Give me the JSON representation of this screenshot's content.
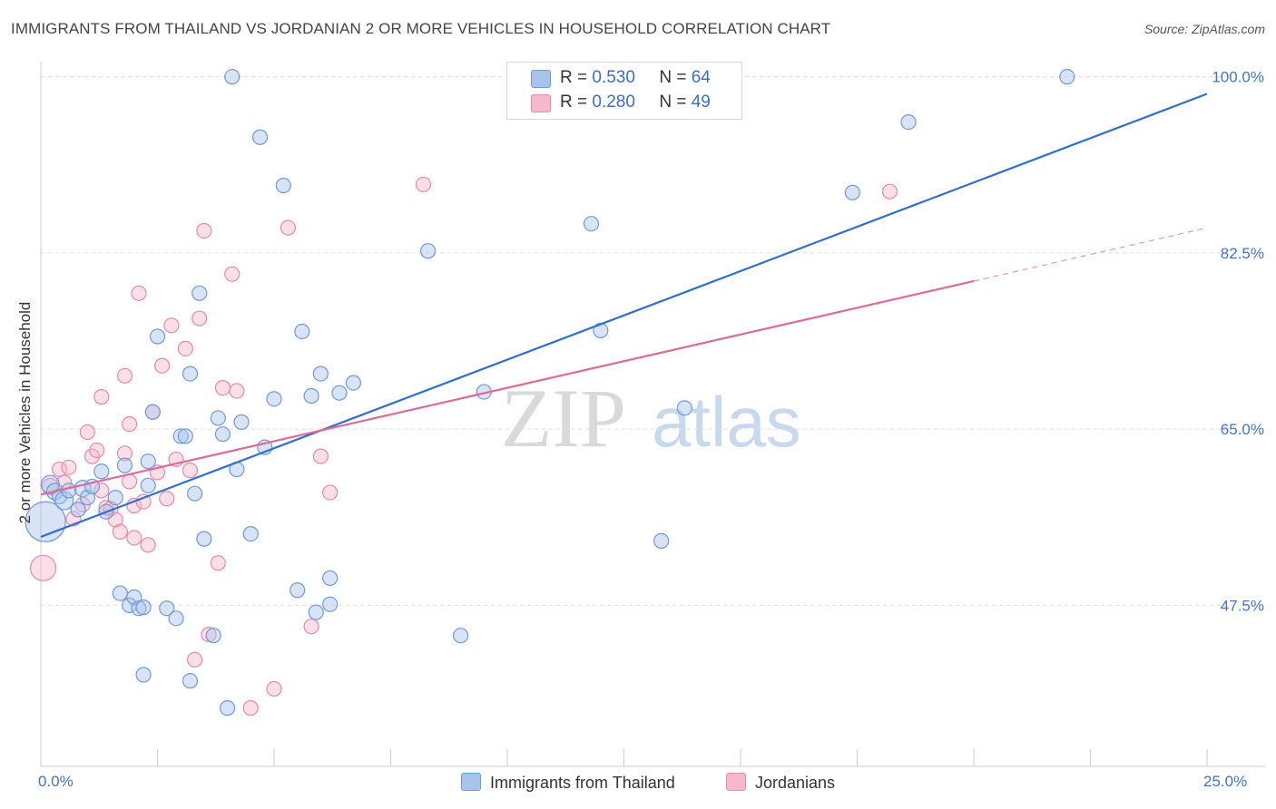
{
  "title": "IMMIGRANTS FROM THAILAND VS JORDANIAN 2 OR MORE VEHICLES IN HOUSEHOLD CORRELATION CHART",
  "source": "Source: ZipAtlas.com",
  "watermark": {
    "zip": "ZIP",
    "atlas": "atlas"
  },
  "legend": {
    "rows": [
      {
        "r_label": "R = ",
        "r_value": "0.530",
        "n_label": "N = ",
        "n_value": "64"
      },
      {
        "r_label": "R = ",
        "r_value": "0.280",
        "n_label": "N = ",
        "n_value": "49"
      }
    ]
  },
  "bottom_legend": {
    "series1": "Immigrants from Thailand",
    "series2": "Jordanians"
  },
  "colors": {
    "blue_fill": "#a9c4ec",
    "blue_stroke": "#6f9ad8",
    "blue_line": "#2e6fd0",
    "pink_fill": "#f6b8cb",
    "pink_stroke": "#e88aa8",
    "pink_line": "#e06a97",
    "tick_label": "#4472c4",
    "grid": "#dddddd"
  },
  "chart_data": {
    "type": "scatter",
    "title": "IMMIGRANTS FROM THAILAND VS JORDANIAN 2 OR MORE VEHICLES IN HOUSEHOLD CORRELATION CHART",
    "xlabel": "",
    "ylabel": "2 or more Vehicles in Household",
    "xlim": [
      0,
      25
    ],
    "ylim": [
      31.5,
      101.5
    ],
    "x_tick_labels": [
      {
        "value": 0,
        "label": "0.0%"
      },
      {
        "value": 25,
        "label": "25.0%"
      }
    ],
    "y_tick_labels": [
      {
        "value": 47.5,
        "label": "47.5%"
      },
      {
        "value": 65.0,
        "label": "65.0%"
      },
      {
        "value": 82.5,
        "label": "82.5%"
      },
      {
        "value": 100.0,
        "label": "100.0%"
      }
    ],
    "x_minor_ticks": [
      2.5,
      5,
      7.5,
      10,
      12.5,
      15,
      17.5,
      20,
      22.5,
      25
    ],
    "grid": true,
    "legend_position": "top-center",
    "series": [
      {
        "name": "Immigrants from Thailand",
        "color": "blue",
        "R": 0.53,
        "N": 64,
        "trend": {
          "x0": 0,
          "y0": 54.3,
          "x1": 25,
          "y1": 98.3,
          "dashed_from": null
        },
        "points": [
          [
            0.1,
            55.8,
            22
          ],
          [
            0.2,
            59.5,
            10
          ],
          [
            0.3,
            58.8,
            9
          ],
          [
            0.4,
            58.3,
            8
          ],
          [
            0.5,
            57.9,
            10
          ],
          [
            0.6,
            58.9,
            8
          ],
          [
            0.8,
            57.0,
            8
          ],
          [
            0.9,
            59.1,
            9
          ],
          [
            1.0,
            58.2,
            8
          ],
          [
            1.1,
            59.3,
            8
          ],
          [
            1.3,
            60.8,
            8
          ],
          [
            1.4,
            56.8,
            8
          ],
          [
            1.6,
            58.2,
            8
          ],
          [
            1.7,
            48.7,
            8
          ],
          [
            1.8,
            61.4,
            8
          ],
          [
            1.9,
            47.5,
            8
          ],
          [
            2.0,
            48.3,
            8
          ],
          [
            2.1,
            47.2,
            8
          ],
          [
            2.2,
            47.3,
            8
          ],
          [
            2.3,
            61.8,
            8
          ],
          [
            2.2,
            40.6,
            8
          ],
          [
            2.3,
            59.4,
            8
          ],
          [
            2.4,
            66.7,
            8
          ],
          [
            2.5,
            74.2,
            8
          ],
          [
            2.7,
            47.2,
            8
          ],
          [
            2.9,
            46.2,
            8
          ],
          [
            3.0,
            64.3,
            8
          ],
          [
            3.1,
            64.3,
            8
          ],
          [
            3.2,
            40.0,
            8
          ],
          [
            3.2,
            70.5,
            8
          ],
          [
            3.3,
            58.6,
            8
          ],
          [
            3.4,
            78.5,
            8
          ],
          [
            3.5,
            54.1,
            8
          ],
          [
            3.7,
            44.5,
            8
          ],
          [
            3.8,
            66.1,
            8
          ],
          [
            3.9,
            64.5,
            8
          ],
          [
            4.0,
            37.3,
            8
          ],
          [
            4.1,
            100.0,
            8
          ],
          [
            4.2,
            61.0,
            8
          ],
          [
            4.3,
            65.7,
            8
          ],
          [
            4.5,
            54.6,
            8
          ],
          [
            4.7,
            94.0,
            8
          ],
          [
            4.8,
            63.2,
            8
          ],
          [
            5.0,
            68.0,
            8
          ],
          [
            5.2,
            89.2,
            8
          ],
          [
            5.5,
            49.0,
            8
          ],
          [
            5.6,
            74.7,
            8
          ],
          [
            5.8,
            68.3,
            8
          ],
          [
            5.9,
            46.8,
            8
          ],
          [
            6.0,
            70.5,
            8
          ],
          [
            6.2,
            47.6,
            8
          ],
          [
            6.2,
            50.2,
            8
          ],
          [
            6.4,
            68.6,
            8
          ],
          [
            6.7,
            69.6,
            8
          ],
          [
            8.3,
            82.7,
            8
          ],
          [
            9.0,
            44.5,
            8
          ],
          [
            9.5,
            68.7,
            8
          ],
          [
            11.8,
            85.4,
            8
          ],
          [
            12.0,
            74.8,
            8
          ],
          [
            13.3,
            53.9,
            8
          ],
          [
            13.8,
            67.1,
            8
          ],
          [
            17.4,
            88.5,
            8
          ],
          [
            18.6,
            95.5,
            8
          ],
          [
            22.0,
            100.0,
            8
          ]
        ]
      },
      {
        "name": "Jordanians",
        "color": "pink",
        "R": 0.28,
        "N": 49,
        "trend": {
          "x0": 0,
          "y0": 58.5,
          "x1": 25,
          "y1": 85.0,
          "dashed_from": 20.0
        },
        "points": [
          [
            0.05,
            51.2,
            14
          ],
          [
            0.2,
            59.3,
            9
          ],
          [
            0.4,
            61.0,
            8
          ],
          [
            0.5,
            59.7,
            8
          ],
          [
            0.6,
            61.2,
            8
          ],
          [
            0.7,
            56.1,
            8
          ],
          [
            0.9,
            57.5,
            8
          ],
          [
            1.0,
            64.7,
            8
          ],
          [
            1.1,
            62.3,
            8
          ],
          [
            1.2,
            62.9,
            8
          ],
          [
            1.3,
            58.9,
            8
          ],
          [
            1.3,
            68.2,
            8
          ],
          [
            1.4,
            57.2,
            8
          ],
          [
            1.5,
            57.1,
            8
          ],
          [
            1.6,
            56.0,
            8
          ],
          [
            1.7,
            54.8,
            8
          ],
          [
            1.8,
            70.3,
            8
          ],
          [
            1.8,
            62.6,
            8
          ],
          [
            1.9,
            59.8,
            8
          ],
          [
            1.9,
            65.5,
            8
          ],
          [
            2.0,
            54.2,
            8
          ],
          [
            2.0,
            57.4,
            8
          ],
          [
            2.1,
            78.5,
            8
          ],
          [
            2.2,
            57.8,
            8
          ],
          [
            2.3,
            53.5,
            8
          ],
          [
            2.4,
            66.7,
            8
          ],
          [
            2.5,
            60.7,
            8
          ],
          [
            2.6,
            71.3,
            8
          ],
          [
            2.7,
            58.1,
            8
          ],
          [
            2.8,
            75.3,
            8
          ],
          [
            2.9,
            62.0,
            8
          ],
          [
            3.1,
            73.0,
            8
          ],
          [
            3.2,
            60.9,
            8
          ],
          [
            3.3,
            42.1,
            8
          ],
          [
            3.4,
            76.0,
            8
          ],
          [
            3.5,
            84.7,
            8
          ],
          [
            3.6,
            44.6,
            8
          ],
          [
            3.8,
            51.7,
            8
          ],
          [
            3.9,
            69.1,
            8
          ],
          [
            4.1,
            80.4,
            8
          ],
          [
            4.2,
            68.8,
            8
          ],
          [
            4.5,
            37.3,
            8
          ],
          [
            5.0,
            39.2,
            8
          ],
          [
            5.3,
            85.0,
            8
          ],
          [
            5.8,
            45.4,
            8
          ],
          [
            6.0,
            62.3,
            8
          ],
          [
            6.2,
            58.7,
            8
          ],
          [
            8.2,
            89.3,
            8
          ],
          [
            18.2,
            88.6,
            8
          ]
        ]
      }
    ]
  }
}
